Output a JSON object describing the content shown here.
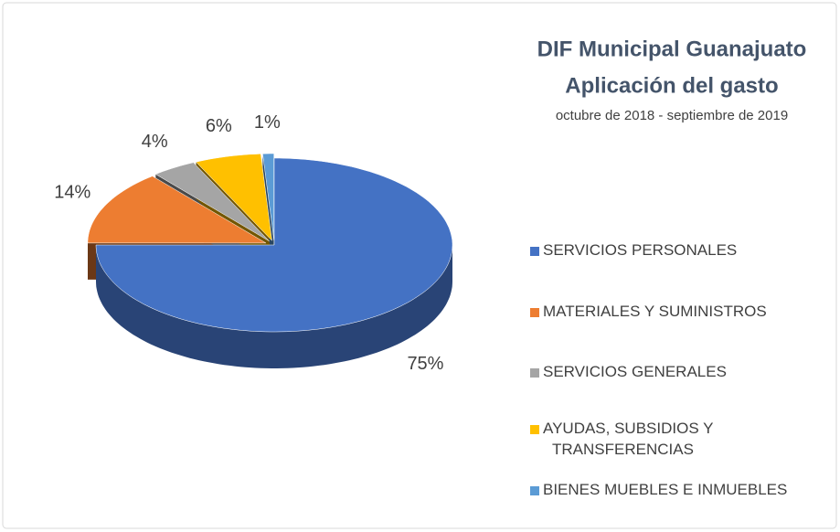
{
  "chart_data": {
    "type": "pie",
    "title": [
      "DIF Municipal Guanajuato",
      "Aplicación del gasto"
    ],
    "subtitle": "octubre de 2018 - septiembre de 2019",
    "categories": [
      "SERVICIOS PERSONALES",
      "MATERIALES Y SUMINISTROS",
      "SERVICIOS GENERALES",
      "AYUDAS, SUBSIDIOS Y TRANSFERENCIAS",
      "BIENES MUEBLES E INMUEBLES"
    ],
    "values": [
      75,
      14,
      4,
      6,
      1
    ],
    "value_labels": [
      "75%",
      "14%",
      "4%",
      "6%",
      "1%"
    ],
    "colors": [
      "#4472c4",
      "#ed7d31",
      "#a5a5a5",
      "#ffc000",
      "#5b9bd5"
    ],
    "legend": "right"
  }
}
